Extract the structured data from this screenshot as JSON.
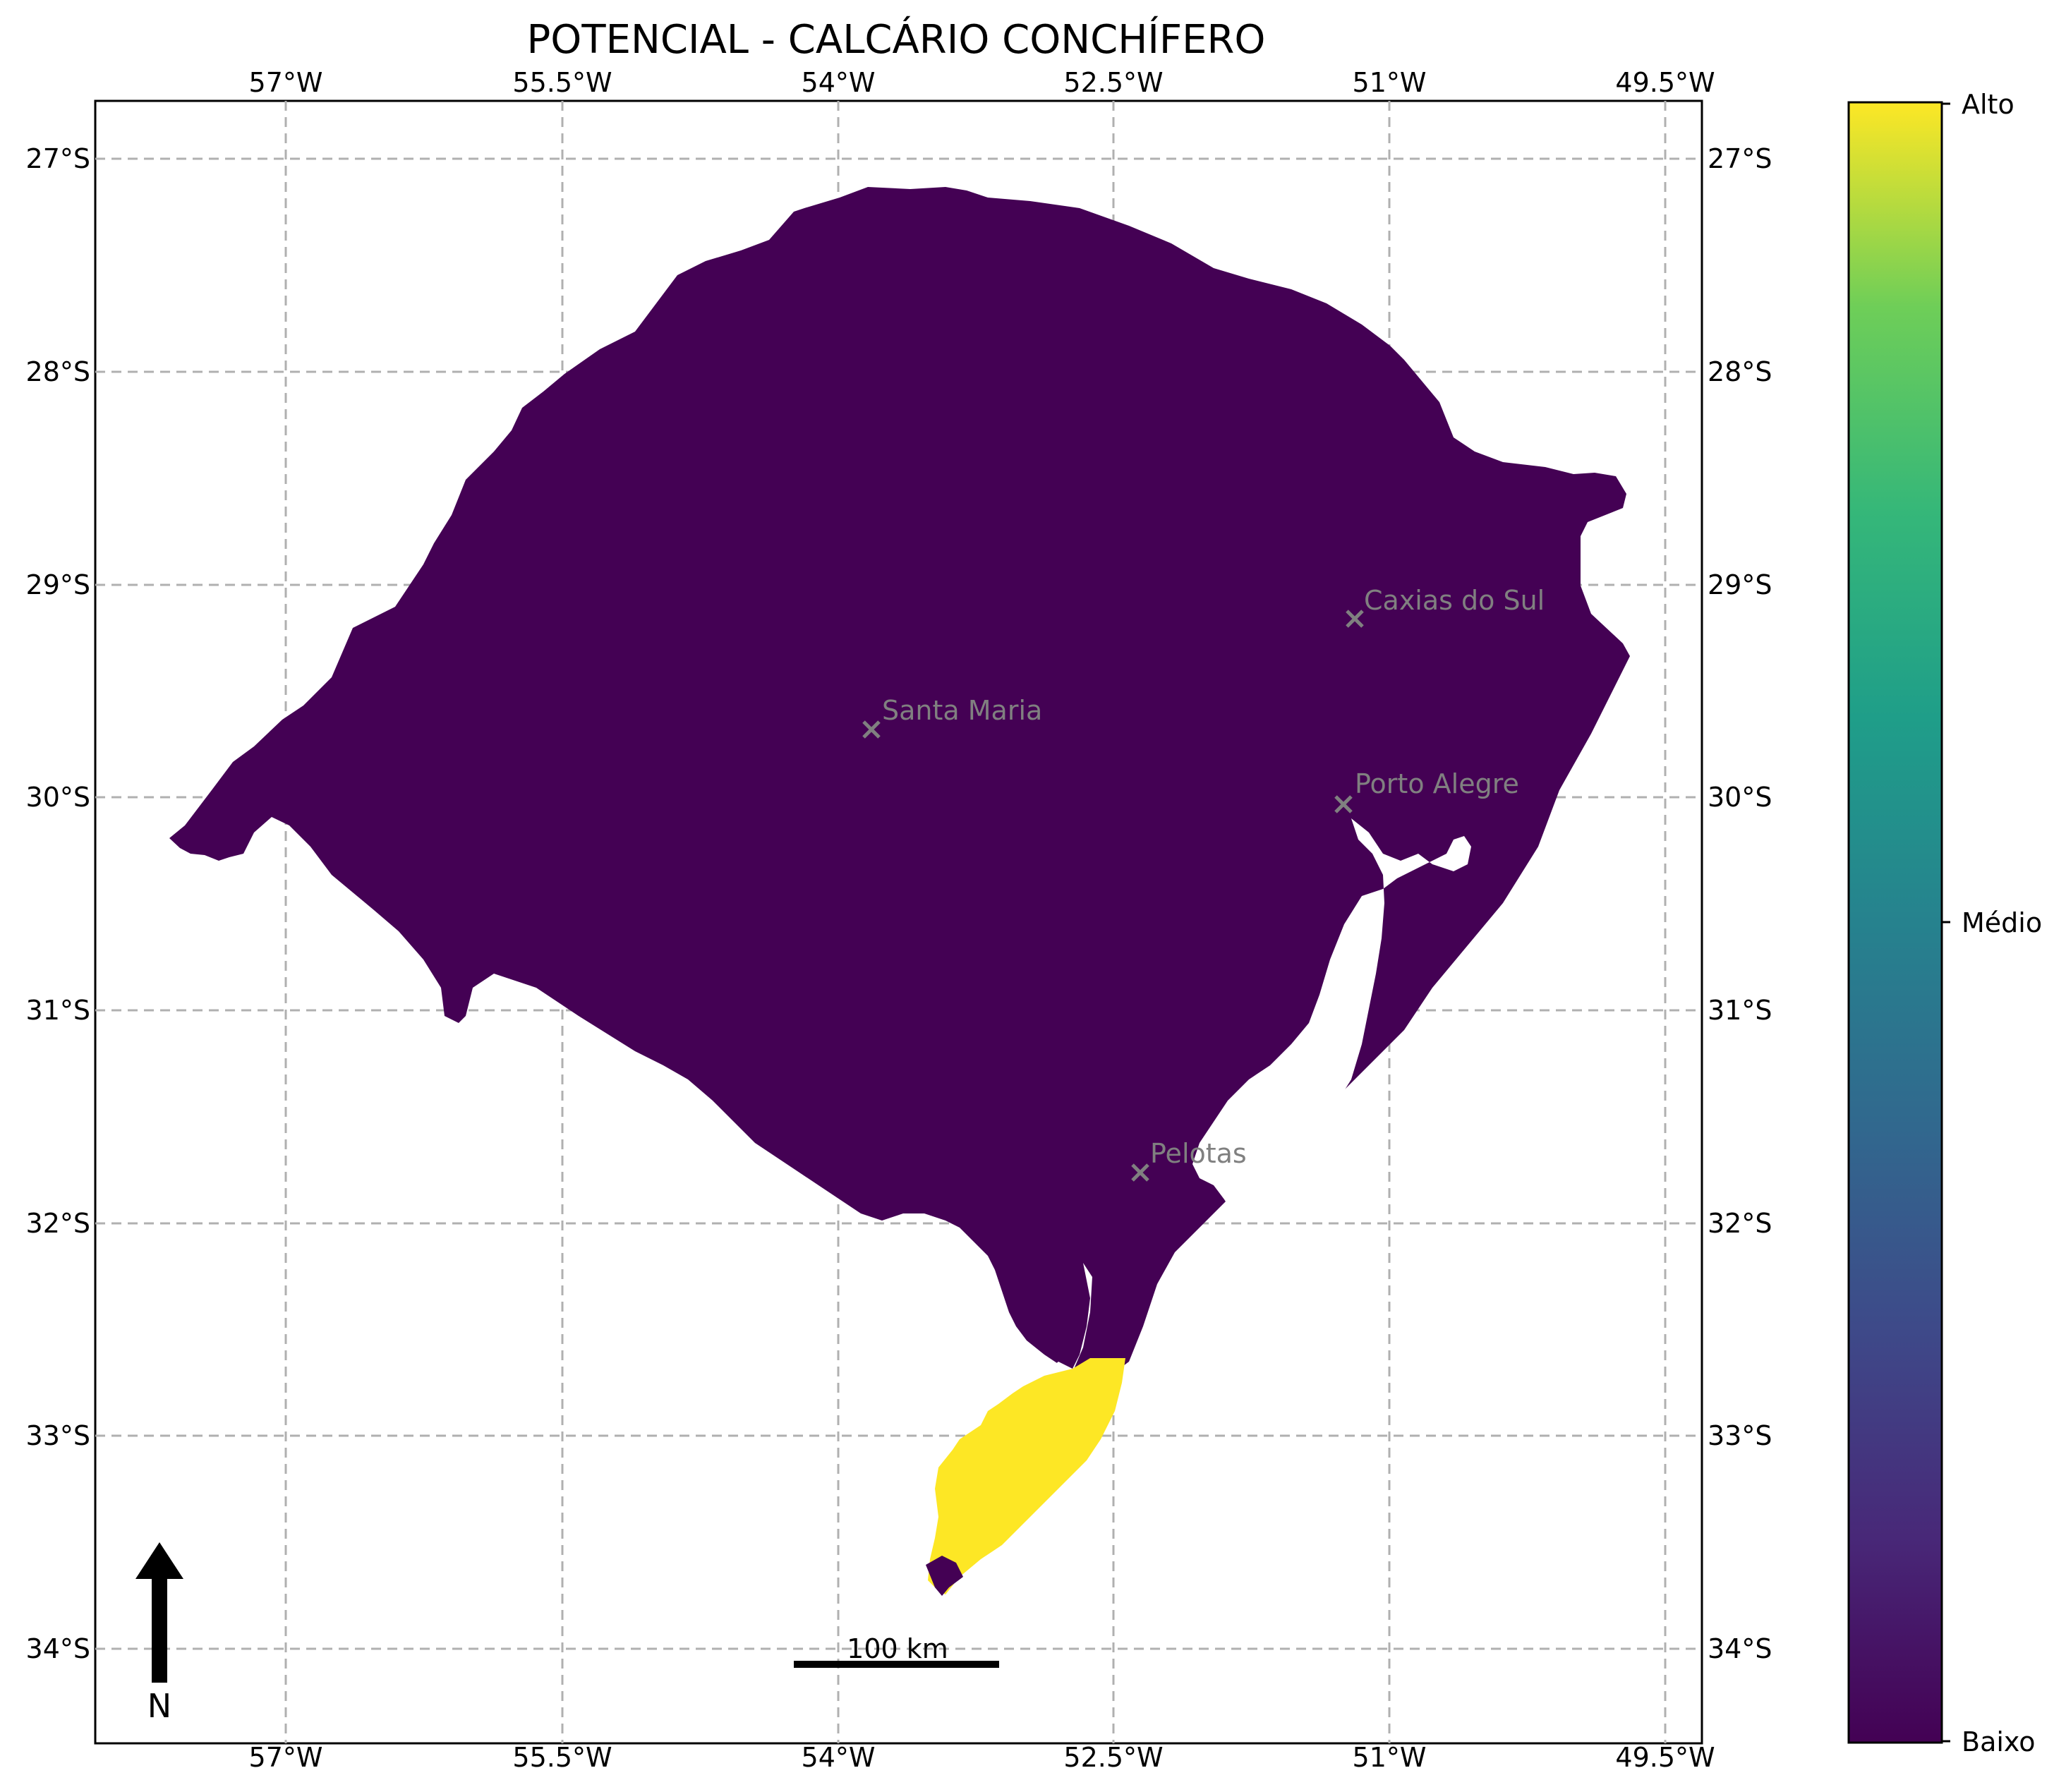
{
  "map": {
    "title": "POTENCIAL - CALCÁRIO CONCHÍFERO",
    "lon_ticks": [
      "57°W",
      "55.5°W",
      "54°W",
      "52.5°W",
      "51°W",
      "49.5°W"
    ],
    "lat_ticks": [
      "27°S",
      "28°S",
      "29°S",
      "30°S",
      "31°S",
      "32°S",
      "33°S",
      "34°S"
    ],
    "cities": [
      {
        "name": "Caxias do Sul"
      },
      {
        "name": "Santa Maria"
      },
      {
        "name": "Porto Alegre"
      },
      {
        "name": "Pelotas"
      }
    ],
    "scale_bar": "100 km",
    "north_arrow": "N"
  },
  "legend": {
    "colorbar_labels": [
      "Alto",
      "Médio",
      "Baixo"
    ],
    "colors": {
      "low": "#440154",
      "high": "#fde725"
    }
  }
}
